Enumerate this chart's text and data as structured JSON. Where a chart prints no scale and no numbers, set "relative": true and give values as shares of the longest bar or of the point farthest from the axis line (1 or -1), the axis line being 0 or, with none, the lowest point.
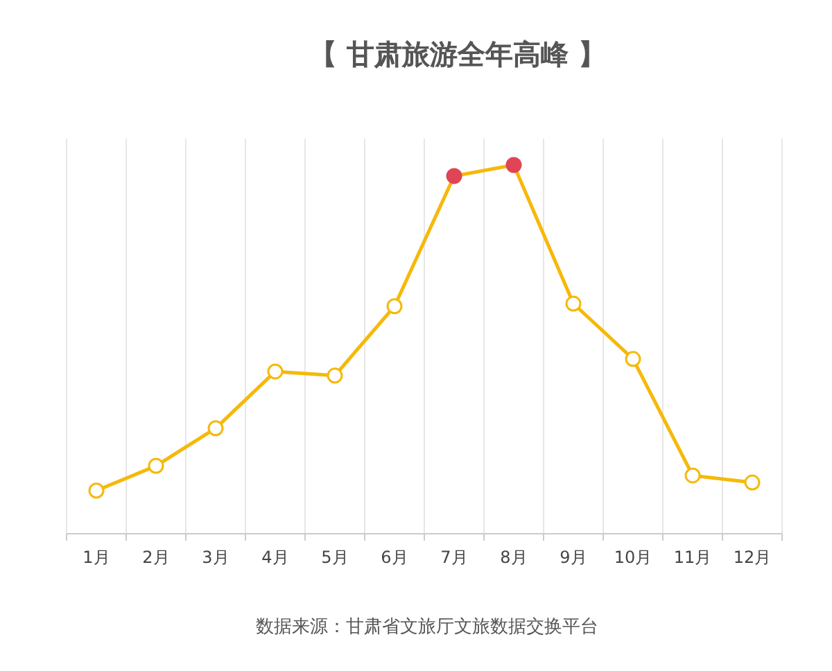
{
  "chart_data": {
    "type": "line",
    "title": "【 甘肃旅游全年高峰 】",
    "categories": [
      "1月",
      "2月",
      "3月",
      "4月",
      "5月",
      "6月",
      "7月",
      "8月",
      "9月",
      "10月",
      "11月",
      "12月"
    ],
    "relative": true,
    "series": [
      {
        "color": "#f5b90a",
        "colors": [
          "#ffffff",
          "#ffffff",
          "#ffffff",
          "#ffffff",
          "#ffffff",
          "#ffffff",
          "#e04555",
          "#e04555",
          "#ffffff",
          "#ffffff",
          "#ffffff",
          "#ffffff"
        ],
        "values": [
          0.117,
          0.184,
          0.286,
          0.44,
          0.429,
          0.617,
          0.97,
          1,
          0.624,
          0.474,
          0.158,
          0.139
        ]
      }
    ],
    "marker": "circle",
    "line_style": "solid",
    "grid": "x",
    "annotations": [
      "数据来源：甘肃省文旅厅文旅数据交换平台"
    ]
  }
}
